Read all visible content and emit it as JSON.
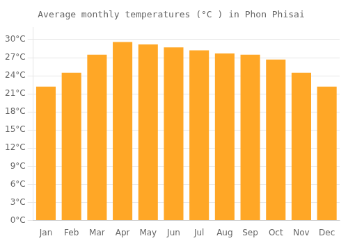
{
  "chart_data": {
    "type": "bar",
    "title": "Average monthly temperatures (°C ) in Phon Phisai",
    "categories": [
      "Jan",
      "Feb",
      "Mar",
      "Apr",
      "May",
      "Jun",
      "Jul",
      "Aug",
      "Sep",
      "Oct",
      "Nov",
      "Dec"
    ],
    "values": [
      22.2,
      24.5,
      27.5,
      29.6,
      29.2,
      28.7,
      28.2,
      27.7,
      27.5,
      26.7,
      24.5,
      22.2
    ],
    "color": "#FFA726",
    "ylim": [
      0,
      32
    ],
    "yticks": [
      {
        "value": 0,
        "label": "0°C"
      },
      {
        "value": 3,
        "label": "3°C"
      },
      {
        "value": 6,
        "label": "6°C"
      },
      {
        "value": 9,
        "label": "9°C"
      },
      {
        "value": 12,
        "label": "12°C"
      },
      {
        "value": 15,
        "label": "15°C"
      },
      {
        "value": 18,
        "label": "18°C"
      },
      {
        "value": 21,
        "label": "21°C"
      },
      {
        "value": 24,
        "label": "24°C"
      },
      {
        "value": 27,
        "label": "27°C"
      },
      {
        "value": 30,
        "label": "30°C"
      }
    ],
    "grid": true
  }
}
